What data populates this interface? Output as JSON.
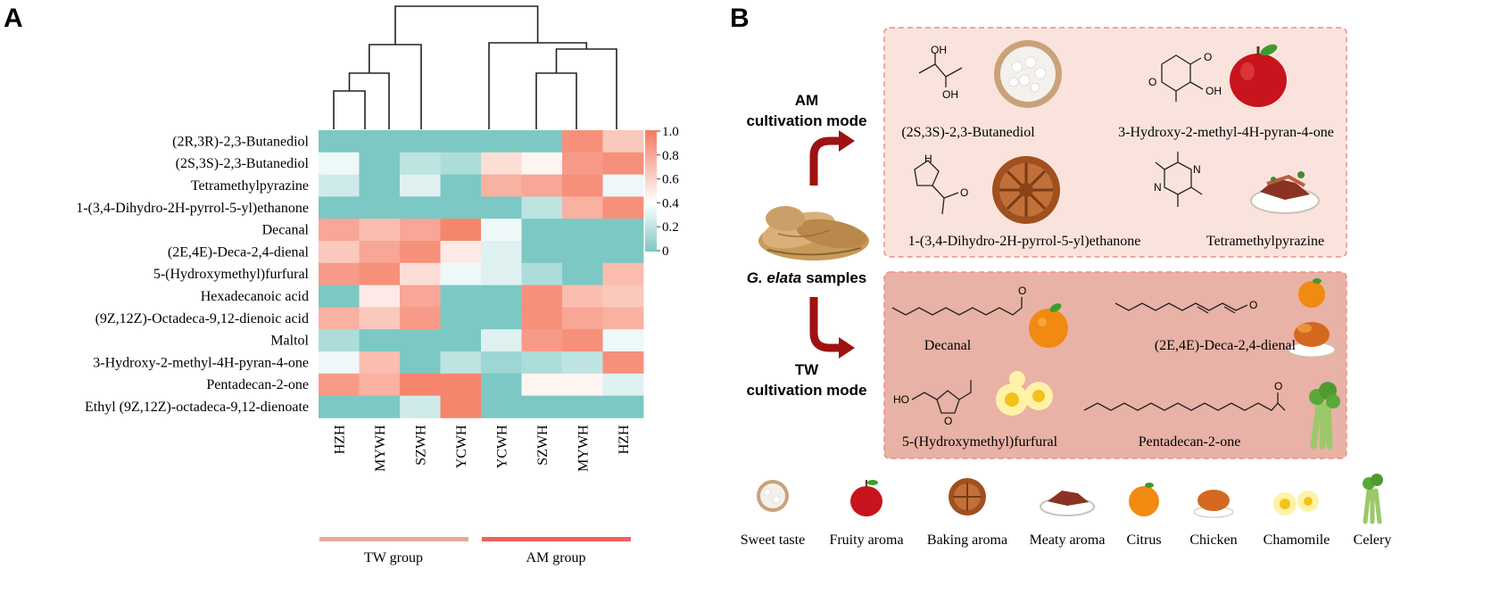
{
  "panel_a": {
    "label": "A",
    "rows": [
      "(2R,3R)-2,3-Butanediol",
      "(2S,3S)-2,3-Butanediol",
      "Tetramethylpyrazine",
      "1-(3,4-Dihydro-2H-pyrrol-5-yl)ethanone",
      "Decanal",
      "(2E,4E)-Deca-2,4-dienal",
      "5-(Hydroxymethyl)furfural",
      "Hexadecanoic acid",
      "(9Z,12Z)-Octadeca-9,12-dienoic acid",
      "Maltol",
      "3-Hydroxy-2-methyl-4H-pyran-4-one",
      "Pentadecan-2-one",
      "Ethyl (9Z,12Z)-octadeca-9,12-dienoate"
    ],
    "columns": [
      "HZH",
      "MYWH",
      "SZWH",
      "YCWH",
      "YCWH",
      "SZWH",
      "MYWH",
      "HZH"
    ],
    "groups": [
      {
        "name": "TW group",
        "color": "#e8a89a"
      },
      {
        "name": "AM group",
        "color": "#f06060"
      }
    ],
    "colorbar": {
      "ticks": [
        "1.0",
        "0.8",
        "0.6",
        "0.4",
        "0.2",
        "0"
      ],
      "low": "#7cc8c4",
      "mid": "#ffffff",
      "high": "#f47a60"
    }
  },
  "chart_data": {
    "type": "heatmap",
    "title": "",
    "xlabel": "",
    "ylabel": "",
    "zlim": [
      0,
      1
    ],
    "values": [
      [
        0.0,
        0.0,
        0.0,
        0.0,
        0.0,
        0.0,
        0.9,
        0.65
      ],
      [
        0.35,
        0.0,
        0.2,
        0.15,
        0.55,
        0.45,
        0.85,
        0.9
      ],
      [
        0.25,
        0.0,
        0.3,
        0.0,
        0.75,
        0.8,
        0.9,
        0.35
      ],
      [
        0.0,
        0.0,
        0.0,
        0.0,
        0.0,
        0.2,
        0.75,
        0.9
      ],
      [
        0.8,
        0.7,
        0.8,
        0.95,
        0.35,
        0.0,
        0.0,
        0.0
      ],
      [
        0.65,
        0.8,
        0.9,
        0.5,
        0.3,
        0.0,
        0.0,
        0.0
      ],
      [
        0.85,
        0.9,
        0.55,
        0.35,
        0.3,
        0.15,
        0.0,
        0.7
      ],
      [
        0.0,
        0.5,
        0.8,
        0.0,
        0.0,
        0.9,
        0.7,
        0.65
      ],
      [
        0.75,
        0.65,
        0.85,
        0.0,
        0.0,
        0.9,
        0.8,
        0.75
      ],
      [
        0.15,
        0.0,
        0.0,
        0.0,
        0.3,
        0.85,
        0.9,
        0.35
      ],
      [
        0.35,
        0.7,
        0.0,
        0.2,
        0.1,
        0.15,
        0.2,
        0.9
      ],
      [
        0.85,
        0.75,
        0.95,
        0.95,
        0.0,
        0.45,
        0.45,
        0.3
      ],
      [
        0.0,
        0.0,
        0.25,
        0.95,
        0.0,
        0.0,
        0.0,
        0.0
      ]
    ]
  },
  "panel_b": {
    "label": "B",
    "am_mode": {
      "line1": "AM",
      "line2": "cultivation mode"
    },
    "tw_mode": {
      "line1": "TW",
      "line2": "cultivation mode"
    },
    "samples_label": {
      "italic": "G. elata",
      "rest": "samples"
    },
    "am_compounds": [
      {
        "name": "(2S,3S)-2,3-Butanediol"
      },
      {
        "name": "3-Hydroxy-2-methyl-4H-pyran-4-one"
      },
      {
        "name": "1-(3,4-Dihydro-2H-pyrrol-5-yl)ethanone"
      },
      {
        "name": "Tetramethylpyrazine"
      }
    ],
    "tw_compounds": [
      {
        "name": "Decanal"
      },
      {
        "name": "(2E,4E)-Deca-2,4-dienal"
      },
      {
        "name": "5-(Hydroxymethyl)furfural"
      },
      {
        "name": "Pentadecan-2-one"
      }
    ],
    "struct_labels": {
      "oh1": "OH",
      "oh2": "OH",
      "oh3": "OH",
      "o1": "O",
      "o2": "O",
      "o3": "O",
      "o4": "O",
      "o5": "O",
      "o6": "O",
      "o7": "O",
      "ho": "HO",
      "nh": "H",
      "n1": "N",
      "n2": "N",
      "n3": "N"
    },
    "legend": [
      "Sweet taste",
      "Fruity aroma",
      "Baking aroma",
      "Meaty aroma",
      "Citrus",
      "Chicken",
      "Chamomile",
      "Celery"
    ]
  }
}
